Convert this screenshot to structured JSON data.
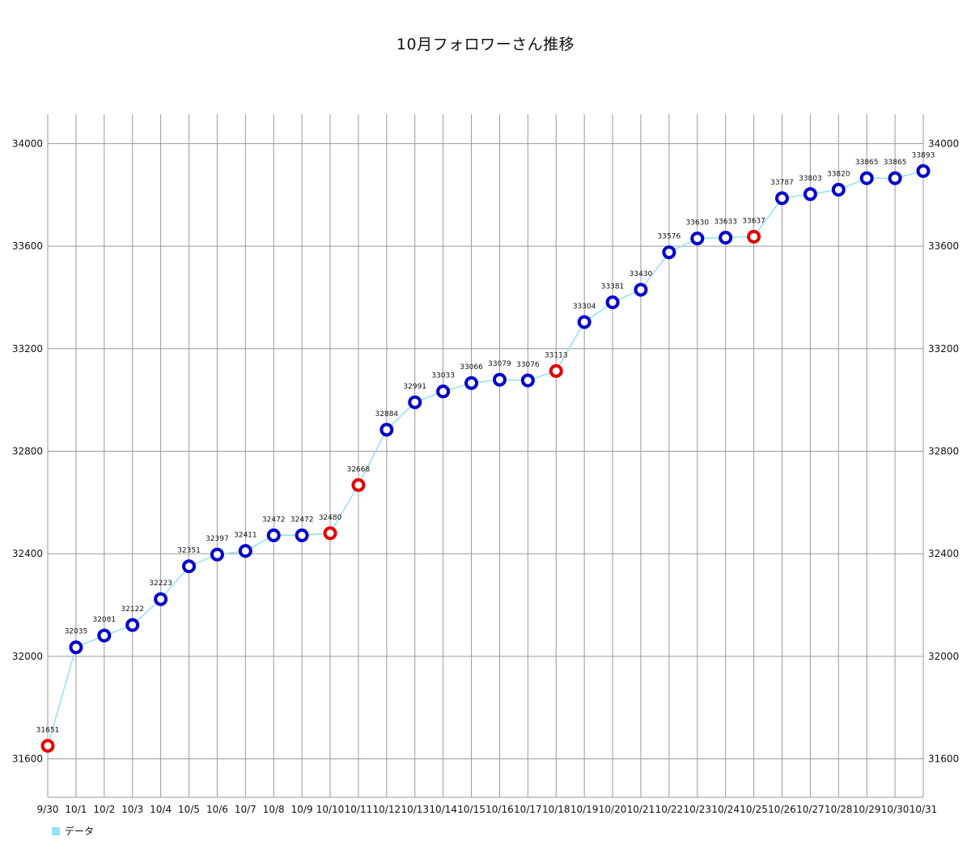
{
  "chart_data": {
    "type": "line",
    "title": "10月フォロワーさん推移",
    "categories": [
      "9/30",
      "10/1",
      "10/2",
      "10/3",
      "10/4",
      "10/5",
      "10/6",
      "10/7",
      "10/8",
      "10/9",
      "10/10",
      "10/11",
      "10/12",
      "10/13",
      "10/14",
      "10/15",
      "10/16",
      "10/17",
      "10/18",
      "10/19",
      "10/20",
      "10/21",
      "10/22",
      "10/23",
      "10/24",
      "10/25",
      "10/26",
      "10/27",
      "10/28",
      "10/29",
      "10/30",
      "10/31"
    ],
    "series": [
      {
        "name": "データ",
        "values": [
          31651,
          32035,
          32081,
          32122,
          32223,
          32351,
          32397,
          32411,
          32472,
          32472,
          32480,
          32668,
          32884,
          32991,
          33033,
          33066,
          33079,
          33076,
          33113,
          33304,
          33381,
          33430,
          33576,
          33630,
          33633,
          33637,
          33787,
          33803,
          33820,
          33865,
          33865,
          33893
        ],
        "highlighted": [
          "9/30",
          "10/10",
          "10/11",
          "10/18",
          "10/25"
        ]
      }
    ],
    "yticks": [
      31600,
      32000,
      32400,
      32800,
      33200,
      33600,
      34000
    ],
    "ylim": [
      31450,
      34115
    ],
    "xlabel": "",
    "ylabel": "",
    "grid": true,
    "secondary_y_axis": true,
    "legend_position": "bottom-left"
  },
  "colors": {
    "line": "#8fe3f5",
    "marker": "#0000cc",
    "marker_highlight": "#e60000",
    "grid": "#9a9a9a"
  }
}
